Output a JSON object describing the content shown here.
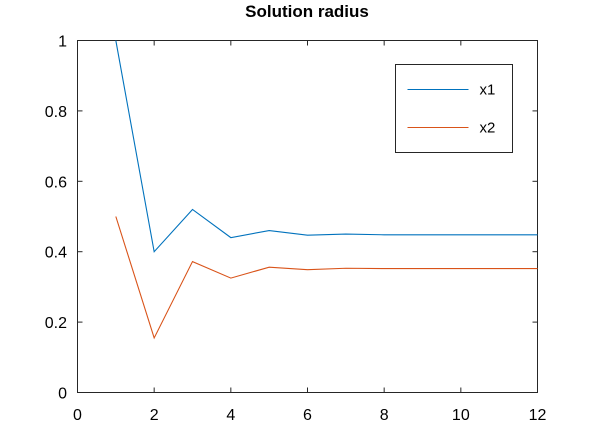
{
  "chart_data": {
    "type": "line",
    "title": "Solution radius",
    "xlabel": "",
    "ylabel": "",
    "xlim": [
      0,
      12
    ],
    "ylim": [
      0,
      1
    ],
    "xticks": [
      0,
      2,
      4,
      6,
      8,
      10,
      12
    ],
    "yticks": [
      0,
      0.2,
      0.4,
      0.6,
      0.8,
      1
    ],
    "grid": false,
    "legend_position": "top-right",
    "x": [
      1,
      2,
      3,
      4,
      5,
      6,
      7,
      8,
      9,
      10,
      11,
      12
    ],
    "series": [
      {
        "name": "x1",
        "color": "#0072bd",
        "values": [
          1.0,
          0.4,
          0.52,
          0.44,
          0.46,
          0.447,
          0.45,
          0.448,
          0.448,
          0.448,
          0.448,
          0.448
        ]
      },
      {
        "name": "x2",
        "color": "#d95319",
        "values": [
          0.5,
          0.155,
          0.372,
          0.325,
          0.356,
          0.349,
          0.353,
          0.352,
          0.352,
          0.352,
          0.352,
          0.352
        ]
      }
    ]
  }
}
